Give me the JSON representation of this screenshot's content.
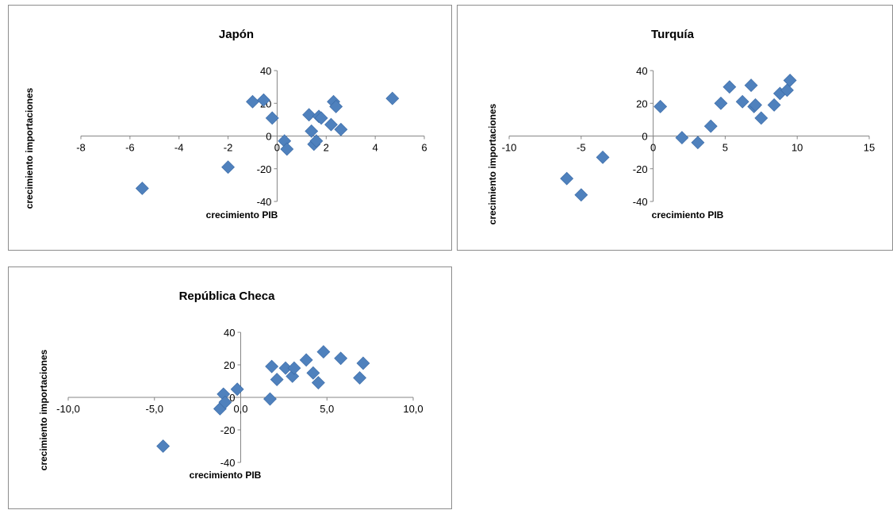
{
  "chart_data": [
    {
      "type": "scatter",
      "title": "Japón",
      "xlabel": "crecimiento PIB",
      "ylabel": "crecimiento importaciones",
      "xlim": [
        -8,
        6
      ],
      "ylim": [
        -40,
        40
      ],
      "x_ticks": [
        "-8",
        "-6",
        "-4",
        "-2",
        "0",
        "2",
        "4",
        "6"
      ],
      "y_ticks": [
        "40",
        "20",
        "0",
        "-20",
        "-40"
      ],
      "series": [
        {
          "points": [
            [
              -5.5,
              -32
            ],
            [
              -2.0,
              -19
            ],
            [
              -1.0,
              21
            ],
            [
              -0.55,
              22
            ],
            [
              -0.2,
              11
            ],
            [
              0.3,
              -3
            ],
            [
              0.4,
              -8
            ],
            [
              1.3,
              13
            ],
            [
              1.4,
              3
            ],
            [
              1.5,
              -5
            ],
            [
              1.6,
              -3
            ],
            [
              1.7,
              12
            ],
            [
              1.8,
              11
            ],
            [
              2.2,
              7
            ],
            [
              2.3,
              21
            ],
            [
              2.4,
              18
            ],
            [
              2.6,
              4
            ],
            [
              4.7,
              23
            ]
          ]
        }
      ]
    },
    {
      "type": "scatter",
      "title": "Turquía",
      "xlabel": "crecimiento PIB",
      "ylabel": "crecimiento importaciones",
      "xlim": [
        -10,
        15
      ],
      "ylim": [
        -40,
        40
      ],
      "x_ticks": [
        "-10",
        "-5",
        "0",
        "5",
        "10",
        "15"
      ],
      "y_ticks": [
        "40",
        "20",
        "0",
        "-20",
        "-40"
      ],
      "series": [
        {
          "points": [
            [
              -6,
              -26
            ],
            [
              -5,
              -36
            ],
            [
              -3.5,
              -13
            ],
            [
              0.5,
              18
            ],
            [
              2,
              -1
            ],
            [
              3.1,
              -4
            ],
            [
              4,
              6
            ],
            [
              4.7,
              20
            ],
            [
              5.3,
              30
            ],
            [
              6.2,
              21
            ],
            [
              6.8,
              31
            ],
            [
              7.0,
              18
            ],
            [
              7.1,
              19
            ],
            [
              7.5,
              11
            ],
            [
              8.4,
              19
            ],
            [
              8.8,
              26
            ],
            [
              9.3,
              28
            ],
            [
              9.5,
              34
            ]
          ]
        }
      ]
    },
    {
      "type": "scatter",
      "title": "República Checa",
      "xlabel": "crecimiento PIB",
      "ylabel": "crecimiento importaciones",
      "xlim": [
        -10,
        10
      ],
      "ylim": [
        -40,
        40
      ],
      "x_ticks": [
        "-10,0",
        "-5,0",
        "0,0",
        "5,0",
        "10,0"
      ],
      "y_ticks": [
        "40",
        "20",
        "0",
        "-20",
        "-40"
      ],
      "series": [
        {
          "points": [
            [
              -4.5,
              -30
            ],
            [
              -1.2,
              -7
            ],
            [
              -1.0,
              2
            ],
            [
              -0.9,
              -3
            ],
            [
              -0.2,
              5
            ],
            [
              1.7,
              -1
            ],
            [
              1.8,
              19
            ],
            [
              2.1,
              11
            ],
            [
              2.6,
              18
            ],
            [
              3.0,
              13
            ],
            [
              3.1,
              18
            ],
            [
              3.8,
              23
            ],
            [
              4.2,
              15
            ],
            [
              4.5,
              9
            ],
            [
              4.8,
              28
            ],
            [
              5.8,
              24
            ],
            [
              6.9,
              12
            ],
            [
              7.1,
              21
            ]
          ]
        }
      ]
    }
  ]
}
